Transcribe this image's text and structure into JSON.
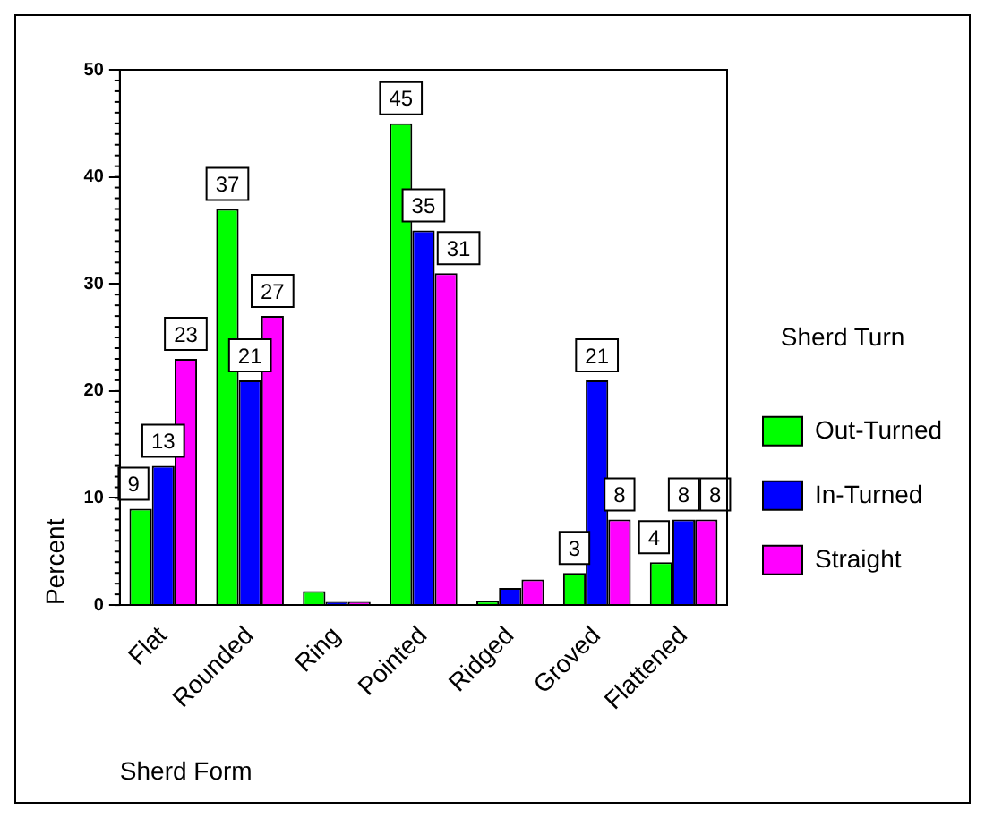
{
  "chart_data": {
    "type": "bar",
    "xlabel": "Sherd Form",
    "ylabel": "Percent",
    "legend_title": "Sherd Turn",
    "categories": [
      "Flat",
      "Rounded",
      "Ring",
      "Pointed",
      "Ridged",
      "Groved",
      "Flattened"
    ],
    "series": [
      {
        "name": "Out-Turned",
        "color": "#00ff00",
        "values": [
          9,
          37,
          1.3,
          45,
          0.4,
          3,
          4
        ],
        "value_labels": [
          "9",
          "37",
          null,
          "45",
          null,
          "3",
          "4"
        ]
      },
      {
        "name": "In-Turned",
        "color": "#0000ff",
        "values": [
          13,
          21,
          0.3,
          35,
          1.6,
          21,
          8
        ],
        "value_labels": [
          "13",
          "21",
          null,
          "35",
          null,
          "21",
          "8"
        ]
      },
      {
        "name": "Straight",
        "color": "#ff00ff",
        "values": [
          23,
          27,
          0.3,
          31,
          2.4,
          8,
          8
        ],
        "value_labels": [
          "23",
          "27",
          null,
          "31",
          null,
          "8",
          "8"
        ]
      }
    ],
    "ylim": [
      0,
      50
    ],
    "yticks": [
      0,
      10,
      20,
      30,
      40,
      50
    ],
    "grid": false,
    "legend": "right"
  }
}
